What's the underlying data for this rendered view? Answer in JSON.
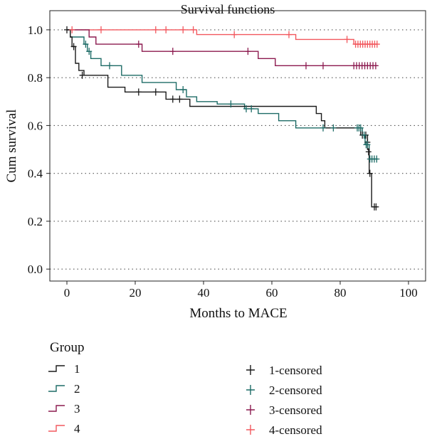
{
  "chart_data": {
    "type": "line",
    "title": "Survival functions",
    "xlabel": "Months to MACE",
    "ylabel": "Cum survival",
    "xlim": [
      -5,
      105
    ],
    "ylim": [
      -0.05,
      1.08
    ],
    "x_ticks": [
      0,
      20,
      40,
      60,
      80,
      100
    ],
    "x_tick_labels": [
      "0",
      "20",
      "40",
      "60",
      "80",
      "100"
    ],
    "y_ticks": [
      0.0,
      0.2,
      0.4,
      0.6,
      0.8,
      1.0
    ],
    "y_tick_labels": [
      "0.0",
      "0.2",
      "0.4",
      "0.6",
      "0.8",
      "1.0"
    ],
    "grid": "horizontal dotted",
    "legend": {
      "title": "Group",
      "placement": "bottom",
      "line_entries": [
        "1",
        "2",
        "3",
        "4"
      ],
      "censor_entries": [
        "1-censored",
        "2-censored",
        "3-censored",
        "4-censored"
      ]
    },
    "series": [
      {
        "name": "1",
        "color": "#1a1a1a",
        "steps": [
          [
            0,
            1.0
          ],
          [
            1,
            0.97
          ],
          [
            1.5,
            0.93
          ],
          [
            2.5,
            0.86
          ],
          [
            3.5,
            0.83
          ],
          [
            5,
            0.81
          ],
          [
            12,
            0.76
          ],
          [
            17,
            0.74
          ],
          [
            29,
            0.71
          ],
          [
            36,
            0.68
          ],
          [
            73,
            0.65
          ],
          [
            74.5,
            0.62
          ],
          [
            75.5,
            0.59
          ],
          [
            86,
            0.56
          ],
          [
            88,
            0.5
          ],
          [
            88.5,
            0.4
          ],
          [
            89.2,
            0.26
          ],
          [
            91,
            0.26
          ]
        ],
        "censored": [
          [
            0,
            1.0
          ],
          [
            2,
            0.93
          ],
          [
            4.5,
            0.81
          ],
          [
            21,
            0.74
          ],
          [
            26,
            0.74
          ],
          [
            31,
            0.71
          ],
          [
            33,
            0.71
          ],
          [
            86.5,
            0.56
          ],
          [
            87.5,
            0.56
          ],
          [
            88,
            0.53
          ],
          [
            88.3,
            0.49
          ],
          [
            88.7,
            0.4
          ],
          [
            90,
            0.26
          ],
          [
            90.5,
            0.26
          ]
        ]
      },
      {
        "name": "2",
        "color": "#1d6b66",
        "steps": [
          [
            0,
            1.0
          ],
          [
            1,
            0.97
          ],
          [
            5,
            0.94
          ],
          [
            6,
            0.91
          ],
          [
            7,
            0.88
          ],
          [
            10,
            0.85
          ],
          [
            16,
            0.81
          ],
          [
            22,
            0.78
          ],
          [
            32,
            0.75
          ],
          [
            35,
            0.72
          ],
          [
            38,
            0.7
          ],
          [
            44,
            0.69
          ],
          [
            52,
            0.67
          ],
          [
            56,
            0.65
          ],
          [
            62,
            0.62
          ],
          [
            67,
            0.59
          ],
          [
            86.5,
            0.56
          ],
          [
            87.3,
            0.52
          ],
          [
            88.5,
            0.46
          ],
          [
            91,
            0.46
          ]
        ],
        "censored": [
          [
            5.5,
            0.94
          ],
          [
            6.5,
            0.91
          ],
          [
            12.5,
            0.85
          ],
          [
            34,
            0.75
          ],
          [
            48,
            0.69
          ],
          [
            52.5,
            0.67
          ],
          [
            54,
            0.67
          ],
          [
            75,
            0.59
          ],
          [
            78,
            0.59
          ],
          [
            85,
            0.59
          ],
          [
            85.5,
            0.59
          ],
          [
            86,
            0.59
          ],
          [
            87,
            0.56
          ],
          [
            87.6,
            0.52
          ],
          [
            88,
            0.52
          ],
          [
            88.7,
            0.46
          ],
          [
            89.3,
            0.46
          ],
          [
            90,
            0.46
          ],
          [
            90.7,
            0.46
          ]
        ]
      },
      {
        "name": "3",
        "color": "#8c1a4f",
        "steps": [
          [
            0,
            1.0
          ],
          [
            6.5,
            0.97
          ],
          [
            8.5,
            0.94
          ],
          [
            22,
            0.91
          ],
          [
            56,
            0.88
          ],
          [
            61,
            0.85
          ],
          [
            91,
            0.85
          ]
        ],
        "censored": [
          [
            21,
            0.94
          ],
          [
            31,
            0.91
          ],
          [
            53,
            0.91
          ],
          [
            70,
            0.85
          ],
          [
            75,
            0.85
          ],
          [
            84,
            0.85
          ],
          [
            84.8,
            0.85
          ],
          [
            85.6,
            0.85
          ],
          [
            86.4,
            0.85
          ],
          [
            87.2,
            0.85
          ],
          [
            88,
            0.85
          ],
          [
            88.8,
            0.85
          ],
          [
            89.6,
            0.85
          ],
          [
            90.4,
            0.85
          ]
        ]
      },
      {
        "name": "4",
        "color": "#f2585e",
        "steps": [
          [
            0,
            1.0
          ],
          [
            38,
            0.98
          ],
          [
            67,
            0.96
          ],
          [
            84,
            0.94
          ],
          [
            91,
            0.94
          ]
        ],
        "censored": [
          [
            1.5,
            1.0
          ],
          [
            10,
            1.0
          ],
          [
            26,
            1.0
          ],
          [
            29,
            1.0
          ],
          [
            34,
            1.0
          ],
          [
            37,
            1.0
          ],
          [
            49,
            0.98
          ],
          [
            65,
            0.98
          ],
          [
            82,
            0.96
          ],
          [
            84.5,
            0.94
          ],
          [
            85.2,
            0.94
          ],
          [
            85.9,
            0.94
          ],
          [
            86.6,
            0.94
          ],
          [
            87.3,
            0.94
          ],
          [
            88,
            0.94
          ],
          [
            88.7,
            0.94
          ],
          [
            89.4,
            0.94
          ],
          [
            90.1,
            0.94
          ],
          [
            90.8,
            0.94
          ]
        ]
      }
    ]
  }
}
